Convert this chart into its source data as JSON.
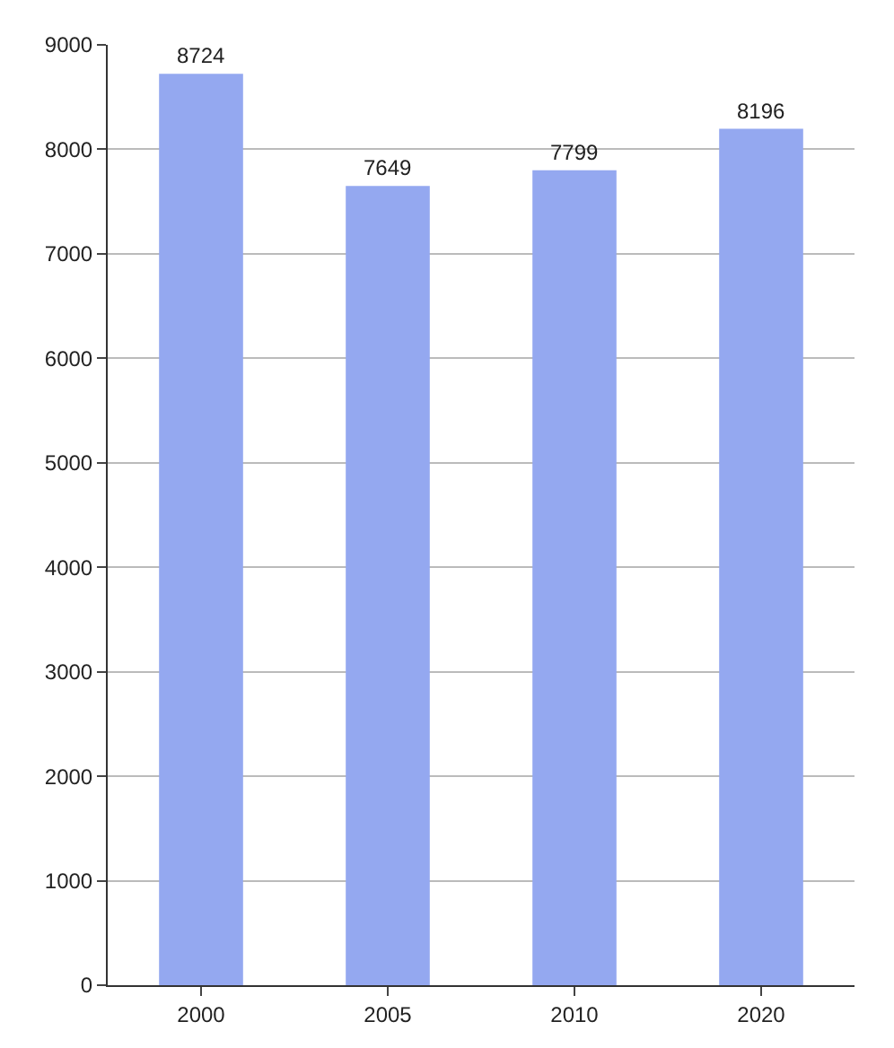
{
  "chart_data": {
    "type": "bar",
    "categories": [
      "2000",
      "2005",
      "2010",
      "2020"
    ],
    "values": [
      8724,
      7649,
      7799,
      8196
    ],
    "color": "#94a8f0",
    "ylim": [
      0,
      9000
    ],
    "yticks": [
      0,
      1000,
      2000,
      3000,
      4000,
      5000,
      6000,
      7000,
      8000,
      9000
    ],
    "grid": "y",
    "data_labels": true
  }
}
